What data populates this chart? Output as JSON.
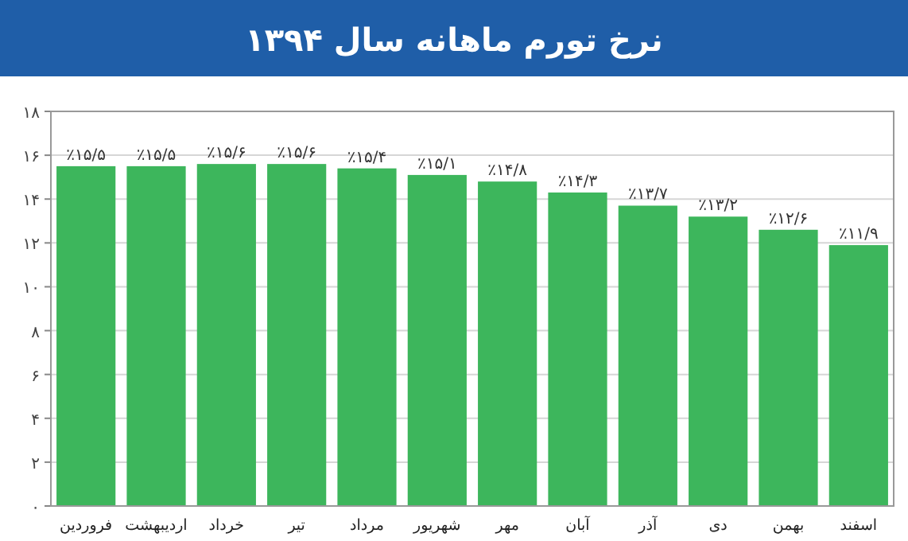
{
  "chart_data": {
    "type": "bar",
    "title": "نرخ تورم ماهانه سال ۱۳۹۴",
    "categories": [
      "فروردین",
      "اردیبهشت",
      "خرداد",
      "تیر",
      "مرداد",
      "شهریور",
      "مهر",
      "آبان",
      "آذر",
      "دی",
      "بهمن",
      "اسفند"
    ],
    "values": [
      15.5,
      15.5,
      15.6,
      15.6,
      15.4,
      15.1,
      14.8,
      14.3,
      13.7,
      13.2,
      12.6,
      11.9
    ],
    "value_labels": [
      "٪۱۵/۵",
      "٪۱۵/۵",
      "٪۱۵/۶",
      "٪۱۵/۶",
      "٪۱۵/۴",
      "٪۱۵/۱",
      "٪۱۴/۸",
      "٪۱۴/۳",
      "٪۱۳/۷",
      "٪۱۳/۲",
      "٪۱۲/۶",
      "٪۱۱/۹"
    ],
    "color": "#3db65c",
    "ylim": [
      0,
      18
    ],
    "yticks": [
      {
        "value": 0,
        "label": "۰"
      },
      {
        "value": 2,
        "label": "۲"
      },
      {
        "value": 4,
        "label": "۴"
      },
      {
        "value": 6,
        "label": "۶"
      },
      {
        "value": 8,
        "label": "۸"
      },
      {
        "value": 10,
        "label": "۱۰"
      },
      {
        "value": 12,
        "label": "۱۲"
      },
      {
        "value": 14,
        "label": "۱۴"
      },
      {
        "value": 16,
        "label": "۱۶"
      },
      {
        "value": 18,
        "label": "۱۸"
      }
    ],
    "grid": "y"
  }
}
